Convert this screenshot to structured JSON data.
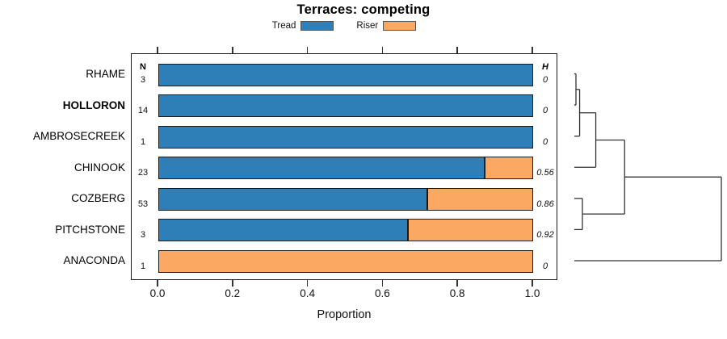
{
  "title": "Terraces: competing",
  "legend": {
    "items": [
      {
        "label": "Tread",
        "color": "#2e7eb8"
      },
      {
        "label": "Riser",
        "color": "#fba863"
      }
    ]
  },
  "columns": {
    "n_header": "N",
    "h_header": "H"
  },
  "xlabel": "Proportion",
  "colors": {
    "tread": "#2e7eb8",
    "riser": "#fba863",
    "bar_border": "#1a1a1a",
    "dendrogram_line": "#333333"
  },
  "chart_data": {
    "type": "bar",
    "stacked": true,
    "orientation": "horizontal",
    "title": "Terraces: competing",
    "xlabel": "Proportion",
    "xlim": [
      0,
      1
    ],
    "x_ticks": [
      "0.0",
      "0.2",
      "0.4",
      "0.6",
      "0.8",
      "1.0"
    ],
    "grid": false,
    "legend_position": "top",
    "categories": [
      "RHAME",
      "HOLLORON",
      "AMBROSECREEK",
      "CHINOOK",
      "COZBERG",
      "PITCHSTONE",
      "ANACONDA"
    ],
    "bold_categories": [
      "HOLLORON"
    ],
    "n_values": [
      "3",
      "14",
      "1",
      "23",
      "53",
      "3",
      "1"
    ],
    "h_values": [
      "0",
      "0",
      "0",
      "0.56",
      "0.86",
      "0.92",
      "0"
    ],
    "series": [
      {
        "name": "Tread",
        "color": "#2e7eb8",
        "values": [
          1,
          1,
          1,
          0.87,
          0.717,
          0.667,
          0
        ]
      },
      {
        "name": "Riser",
        "color": "#fba863",
        "values": [
          0,
          0,
          0,
          0.13,
          0.283,
          0.333,
          1
        ]
      }
    ],
    "dendrogram": {
      "leaves": [
        "RHAME",
        "HOLLORON",
        "AMBROSECREEK",
        "CHINOOK",
        "COZBERG",
        "PITCHSTONE",
        "ANACONDA"
      ],
      "merges": [
        {
          "id": "m1",
          "children": [
            "RHAME",
            "HOLLORON"
          ],
          "height": 0.011
        },
        {
          "id": "m2",
          "children": [
            "m1",
            "AMBROSECREEK"
          ],
          "height": 0.036
        },
        {
          "id": "m3",
          "children": [
            "m2",
            "CHINOOK"
          ],
          "height": 0.146
        },
        {
          "id": "m4",
          "children": [
            "COZBERG",
            "PITCHSTONE"
          ],
          "height": 0.055
        },
        {
          "id": "m5",
          "children": [
            "m3",
            "m4"
          ],
          "height": 0.342
        },
        {
          "id": "m6",
          "children": [
            "m5",
            "ANACONDA"
          ],
          "height": 1.0
        }
      ]
    }
  }
}
